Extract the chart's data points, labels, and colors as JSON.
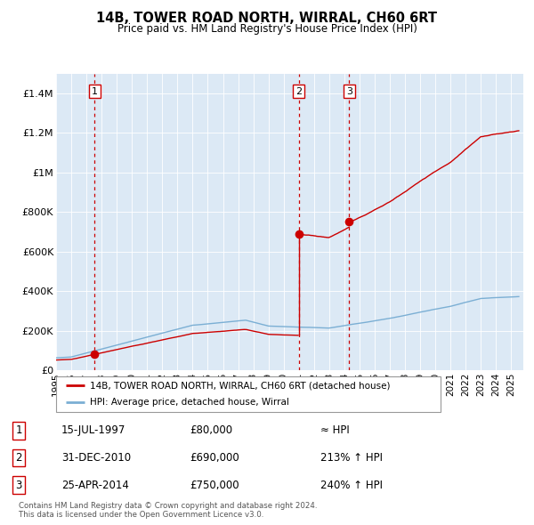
{
  "title": "14B, TOWER ROAD NORTH, WIRRAL, CH60 6RT",
  "subtitle": "Price paid vs. HM Land Registry's House Price Index (HPI)",
  "bg_color": "#dce9f5",
  "red_line_color": "#cc0000",
  "blue_line_color": "#7bafd4",
  "transactions": [
    {
      "num": 1,
      "date_label": "15-JUL-1997",
      "date_x": 1997.54,
      "price": 80000,
      "hpi_rel": "≈ HPI"
    },
    {
      "num": 2,
      "date_label": "31-DEC-2010",
      "date_x": 2010.99,
      "price": 690000,
      "hpi_rel": "213% ↑ HPI"
    },
    {
      "num": 3,
      "date_label": "25-APR-2014",
      "date_x": 2014.32,
      "price": 750000,
      "hpi_rel": "240% ↑ HPI"
    }
  ],
  "legend_label_red": "14B, TOWER ROAD NORTH, WIRRAL, CH60 6RT (detached house)",
  "legend_label_blue": "HPI: Average price, detached house, Wirral",
  "footer": "Contains HM Land Registry data © Crown copyright and database right 2024.\nThis data is licensed under the Open Government Licence v3.0.",
  "ylim": [
    0,
    1500000
  ],
  "xlim_start": 1995.0,
  "xlim_end": 2025.8,
  "yticks": [
    0,
    200000,
    400000,
    600000,
    800000,
    1000000,
    1200000,
    1400000
  ],
  "ytick_labels": [
    "£0",
    "£200K",
    "£400K",
    "£600K",
    "£800K",
    "£1M",
    "£1.2M",
    "£1.4M"
  ]
}
